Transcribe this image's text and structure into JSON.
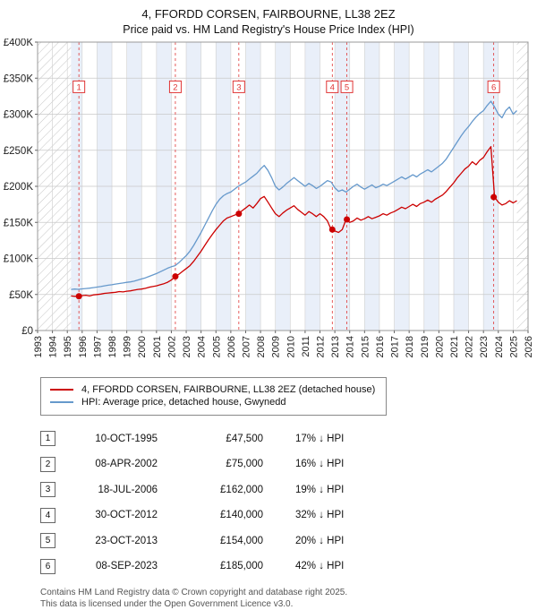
{
  "title": "4, FFORDD CORSEN, FAIRBOURNE, LL38 2EZ",
  "subtitle": "Price paid vs. HM Land Registry's House Price Index (HPI)",
  "footer": {
    "line1": "Contains HM Land Registry data © Crown copyright and database right 2025.",
    "line2": "This data is licensed under the Open Government Licence v3.0."
  },
  "chart_data": {
    "type": "line",
    "x_range": [
      1993,
      2026
    ],
    "y_range": [
      0,
      400000
    ],
    "y_ticks": [
      0,
      50000,
      100000,
      150000,
      200000,
      250000,
      300000,
      350000,
      400000
    ],
    "y_tick_labels": [
      "£0",
      "£50K",
      "£100K",
      "£150K",
      "£200K",
      "£250K",
      "£300K",
      "£350K",
      "£400K"
    ],
    "data_start": 1995.25,
    "data_end": 2025.25,
    "band_start": 1995,
    "band_end": 2025,
    "badge_y": 338000,
    "colors": {
      "band": "#e9eff9",
      "sale_line": "#e03535",
      "marker": "#cc0000"
    },
    "series": [
      {
        "name": "4, FFORDD CORSEN, FAIRBOURNE, LL38 2EZ (detached house)",
        "color": "#cc0000",
        "x0": 1995.25,
        "dx": 0.25,
        "values": [
          48000,
          47500,
          47500,
          48500,
          49000,
          48000,
          49500,
          50000,
          50500,
          51500,
          52000,
          52500,
          53000,
          54000,
          53500,
          54500,
          55000,
          56000,
          57000,
          57500,
          58500,
          60000,
          61000,
          62000,
          63500,
          65000,
          67000,
          70000,
          75000,
          78000,
          82000,
          86000,
          90000,
          96000,
          103000,
          110000,
          118000,
          126000,
          133000,
          140000,
          146000,
          152000,
          156000,
          158000,
          160000,
          162000,
          166000,
          170000,
          174000,
          170000,
          176000,
          183000,
          186000,
          178000,
          170000,
          162000,
          158000,
          163000,
          167000,
          170000,
          173000,
          168000,
          164000,
          160000,
          165000,
          162000,
          158000,
          162000,
          158000,
          152000,
          140000,
          138000,
          136000,
          140000,
          154000,
          150000,
          152000,
          156000,
          153000,
          155000,
          158000,
          155000,
          157000,
          159000,
          162000,
          160000,
          163000,
          165000,
          168000,
          171000,
          169000,
          172000,
          175000,
          172000,
          176000,
          178000,
          181000,
          178000,
          182000,
          185000,
          188000,
          193000,
          199000,
          205000,
          212000,
          218000,
          224000,
          228000,
          234000,
          230000,
          236000,
          240000,
          248000,
          255000,
          185000,
          178000,
          174000,
          176000,
          180000,
          177000,
          180000
        ]
      },
      {
        "name": "HPI: Average price, detached house, Gwynedd",
        "color": "#6699cc",
        "x0": 1995.25,
        "dx": 0.25,
        "values": [
          57000,
          57500,
          57200,
          57800,
          58200,
          58800,
          59500,
          60200,
          61000,
          62000,
          62800,
          63500,
          64500,
          65200,
          66000,
          66800,
          67500,
          68500,
          70000,
          71500,
          73000,
          75000,
          77000,
          79000,
          81500,
          84000,
          86500,
          88500,
          90000,
          94000,
          99000,
          104000,
          110000,
          118000,
          127000,
          136000,
          146000,
          156000,
          166000,
          175000,
          182000,
          187000,
          190000,
          192000,
          196000,
          200000,
          203000,
          206000,
          210000,
          214000,
          218000,
          224000,
          229000,
          222000,
          212000,
          200000,
          195000,
          199000,
          204000,
          208000,
          212000,
          208000,
          204000,
          200000,
          204000,
          201000,
          197000,
          200000,
          204000,
          208000,
          206000,
          198000,
          193000,
          195000,
          192000,
          196000,
          200000,
          203000,
          199000,
          196000,
          199000,
          202000,
          198000,
          200000,
          203000,
          201000,
          204000,
          207000,
          210000,
          213000,
          210000,
          213000,
          216000,
          213000,
          217000,
          220000,
          223000,
          220000,
          224000,
          228000,
          232000,
          238000,
          246000,
          254000,
          262000,
          270000,
          277000,
          283000,
          290000,
          296000,
          301000,
          305000,
          312000,
          318000,
          310000,
          300000,
          295000,
          305000,
          310000,
          300000,
          305000
        ]
      }
    ],
    "sales": [
      {
        "n": "1",
        "x": 1995.78,
        "y": 47500,
        "date": "10-OCT-1995",
        "price": "£47,500",
        "diff": "17% ↓ HPI"
      },
      {
        "n": "2",
        "x": 2002.27,
        "y": 75000,
        "date": "08-APR-2002",
        "price": "£75,000",
        "diff": "16% ↓ HPI"
      },
      {
        "n": "3",
        "x": 2006.54,
        "y": 162000,
        "date": "18-JUL-2006",
        "price": "£162,000",
        "diff": "19% ↓ HPI"
      },
      {
        "n": "4",
        "x": 2012.83,
        "y": 140000,
        "date": "30-OCT-2012",
        "price": "£140,000",
        "diff": "32% ↓ HPI"
      },
      {
        "n": "5",
        "x": 2013.81,
        "y": 154000,
        "date": "23-OCT-2013",
        "price": "£154,000",
        "diff": "20% ↓ HPI"
      },
      {
        "n": "6",
        "x": 2023.69,
        "y": 185000,
        "date": "08-SEP-2023",
        "price": "£185,000",
        "diff": "42% ↓ HPI"
      }
    ]
  }
}
